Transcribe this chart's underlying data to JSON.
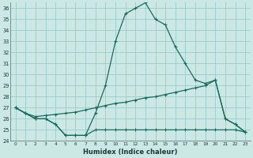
{
  "xlabel": "Humidex (Indice chaleur)",
  "background_color": "#cce8e4",
  "grid_color": "#99cccc",
  "line_color": "#1a6a60",
  "xlim": [
    -0.5,
    23.5
  ],
  "ylim": [
    24,
    36.5
  ],
  "yticks": [
    24,
    25,
    26,
    27,
    28,
    29,
    30,
    31,
    32,
    33,
    34,
    35,
    36
  ],
  "xticks": [
    0,
    1,
    2,
    3,
    4,
    5,
    6,
    7,
    8,
    9,
    10,
    11,
    12,
    13,
    14,
    15,
    16,
    17,
    18,
    19,
    20,
    21,
    22,
    23
  ],
  "curve_peak": [
    27.0,
    26.5,
    26.0,
    26.0,
    25.5,
    24.5,
    24.5,
    24.5,
    26.5,
    29.0,
    33.0,
    35.5,
    36.0,
    36.5,
    35.0,
    34.5,
    32.5,
    31.0,
    29.5,
    29.2,
    29.5,
    26.0,
    25.5,
    24.8
  ],
  "curve_diag": [
    27.0,
    26.5,
    26.2,
    26.3,
    26.4,
    26.5,
    26.6,
    26.8,
    27.0,
    27.2,
    27.4,
    27.5,
    27.7,
    27.9,
    28.0,
    28.2,
    28.4,
    28.6,
    28.8,
    29.0,
    29.5,
    26.0,
    25.5,
    24.8
  ],
  "curve_flat": [
    27.0,
    26.5,
    26.0,
    26.0,
    25.5,
    24.5,
    24.5,
    24.5,
    25.0,
    25.0,
    25.0,
    25.0,
    25.0,
    25.0,
    25.0,
    25.0,
    25.0,
    25.0,
    25.0,
    25.0,
    25.0,
    25.0,
    25.0,
    24.8
  ]
}
